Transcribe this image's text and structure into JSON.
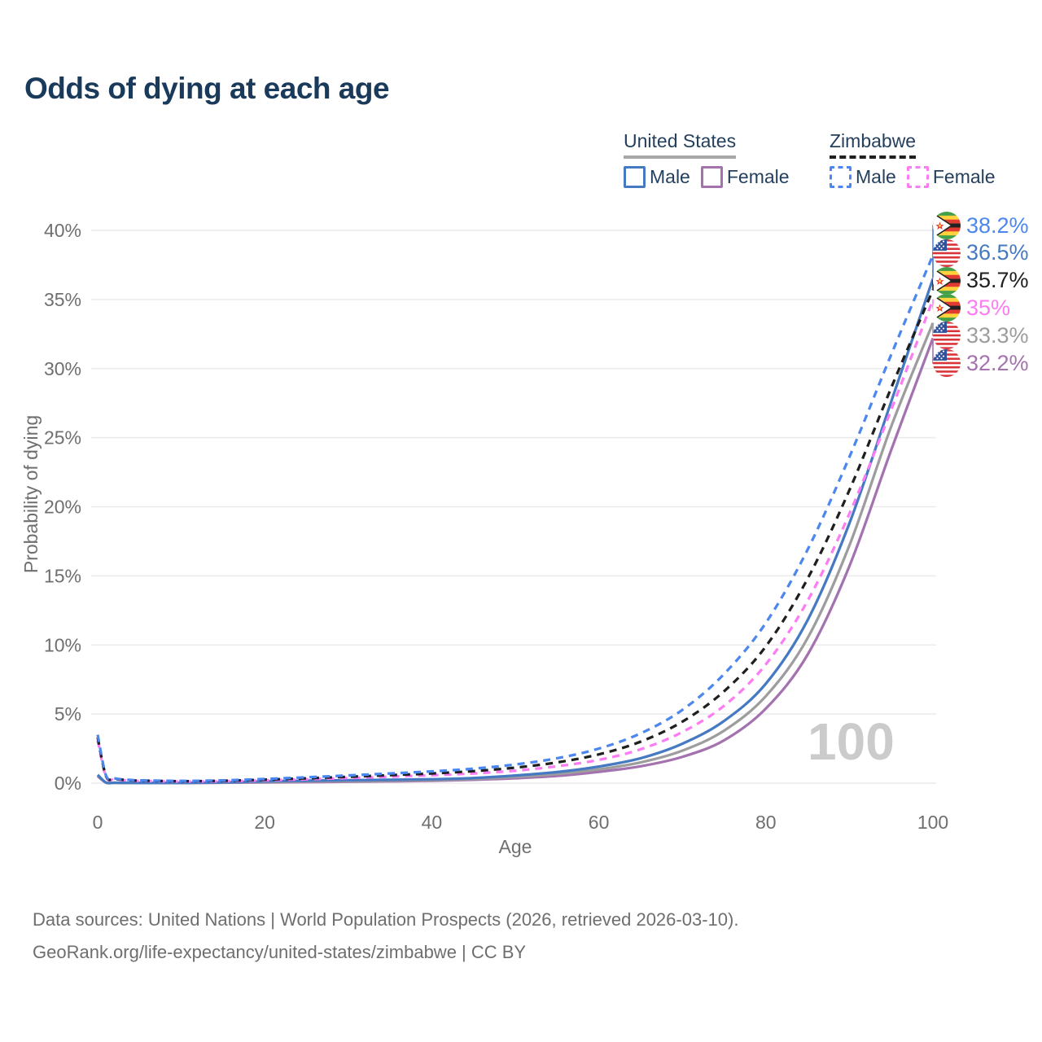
{
  "title": "Odds of dying at each age",
  "title_color": "#1a3a5c",
  "text_color": "#24405e",
  "legend": {
    "groups": [
      {
        "name": "United States",
        "line_color": "#a8a8a8",
        "line_dashed": false,
        "items": [
          {
            "label": "Male",
            "color": "#4579c2",
            "dashed": false
          },
          {
            "label": "Female",
            "color": "#a472af",
            "dashed": false
          }
        ]
      },
      {
        "name": "Zimbabwe",
        "line_color": "#1f1f1f",
        "line_dashed": true,
        "items": [
          {
            "label": "Male",
            "color": "#4b87ee",
            "dashed": true
          },
          {
            "label": "Female",
            "color": "#fc7cf4",
            "dashed": true
          }
        ]
      }
    ]
  },
  "watermark": "100",
  "footer": {
    "line1": "Data sources: United Nations | World Population Prospects (2026, retrieved 2026-03-10).",
    "line2": "GeoRank.org/life-expectancy/united-states/zimbabwe | CC BY"
  },
  "chart_data": {
    "type": "line",
    "title": "Odds of dying at each age",
    "xlabel": "Age",
    "ylabel": "Probability of dying",
    "xlim": [
      0,
      100
    ],
    "ylim": [
      0,
      40
    ],
    "x_ticks": [
      0,
      20,
      40,
      60,
      80,
      100
    ],
    "y_ticks": [
      0,
      5,
      10,
      15,
      20,
      25,
      30,
      35,
      40
    ],
    "y_tick_suffix": "%",
    "grid": "horizontal-only",
    "grid_color": "#ebebeb",
    "axis_text_color": "#6f6f6f",
    "legend_position": "top-right",
    "x": [
      0,
      1,
      2,
      3,
      4,
      5,
      10,
      15,
      20,
      25,
      30,
      35,
      40,
      45,
      50,
      55,
      60,
      65,
      70,
      75,
      80,
      85,
      90,
      95,
      100
    ],
    "series": [
      {
        "name": "United States Female",
        "country": "United States",
        "sex": "female",
        "color": "#a472af",
        "dashed": false,
        "flag": "us",
        "end_label": "32.2%",
        "values": [
          0.5,
          0.035,
          0.025,
          0.018,
          0.016,
          0.012,
          0.012,
          0.03,
          0.05,
          0.07,
          0.1,
          0.13,
          0.17,
          0.24,
          0.35,
          0.52,
          0.82,
          1.22,
          1.9,
          3.1,
          5.4,
          9.3,
          15.7,
          24.1,
          32.2
        ]
      },
      {
        "name": "United States Both sexes",
        "country": "United States",
        "sex": "both",
        "color": "#9d9d9d",
        "dashed": false,
        "flag": "us",
        "end_label": "33.3%",
        "values": [
          0.55,
          0.038,
          0.028,
          0.019,
          0.018,
          0.014,
          0.013,
          0.04,
          0.09,
          0.125,
          0.155,
          0.185,
          0.22,
          0.3,
          0.45,
          0.66,
          1.0,
          1.5,
          2.35,
          3.8,
          6.3,
          10.5,
          17.2,
          25.8,
          33.3
        ]
      },
      {
        "name": "United States Male",
        "country": "United States",
        "sex": "male",
        "color": "#4579c2",
        "dashed": false,
        "flag": "us",
        "end_label": "36.5%",
        "values": [
          0.6,
          0.04,
          0.03,
          0.02,
          0.02,
          0.015,
          0.015,
          0.05,
          0.13,
          0.18,
          0.21,
          0.24,
          0.28,
          0.37,
          0.55,
          0.8,
          1.2,
          1.8,
          2.85,
          4.5,
          7.2,
          11.8,
          18.8,
          27.6,
          36.5
        ]
      },
      {
        "name": "Zimbabwe Female",
        "country": "Zimbabwe",
        "sex": "female",
        "color": "#fc7cf4",
        "dashed": true,
        "flag": "zw",
        "end_label": "35%",
        "values": [
          3.1,
          0.45,
          0.29,
          0.22,
          0.19,
          0.16,
          0.12,
          0.14,
          0.2,
          0.28,
          0.37,
          0.47,
          0.57,
          0.7,
          0.9,
          1.22,
          1.68,
          2.45,
          3.7,
          5.6,
          8.6,
          13.2,
          19.5,
          27.0,
          35.0
        ]
      },
      {
        "name": "Zimbabwe Both sexes",
        "country": "Zimbabwe",
        "sex": "both",
        "color": "#1f1f1f",
        "dashed": true,
        "flag": "zw",
        "end_label": "35.7%",
        "values": [
          3.3,
          0.5,
          0.32,
          0.24,
          0.21,
          0.18,
          0.14,
          0.17,
          0.25,
          0.35,
          0.46,
          0.58,
          0.7,
          0.87,
          1.12,
          1.5,
          2.08,
          3.0,
          4.45,
          6.65,
          9.9,
          14.8,
          21.2,
          28.6,
          35.7
        ]
      },
      {
        "name": "Zimbabwe Male",
        "country": "Zimbabwe",
        "sex": "male",
        "color": "#4b87ee",
        "dashed": true,
        "flag": "zw",
        "end_label": "38.2%",
        "values": [
          3.5,
          0.55,
          0.35,
          0.27,
          0.23,
          0.2,
          0.16,
          0.2,
          0.3,
          0.42,
          0.56,
          0.7,
          0.85,
          1.05,
          1.35,
          1.8,
          2.5,
          3.6,
          5.3,
          7.9,
          11.6,
          16.9,
          23.6,
          31.0,
          38.2
        ]
      }
    ]
  }
}
